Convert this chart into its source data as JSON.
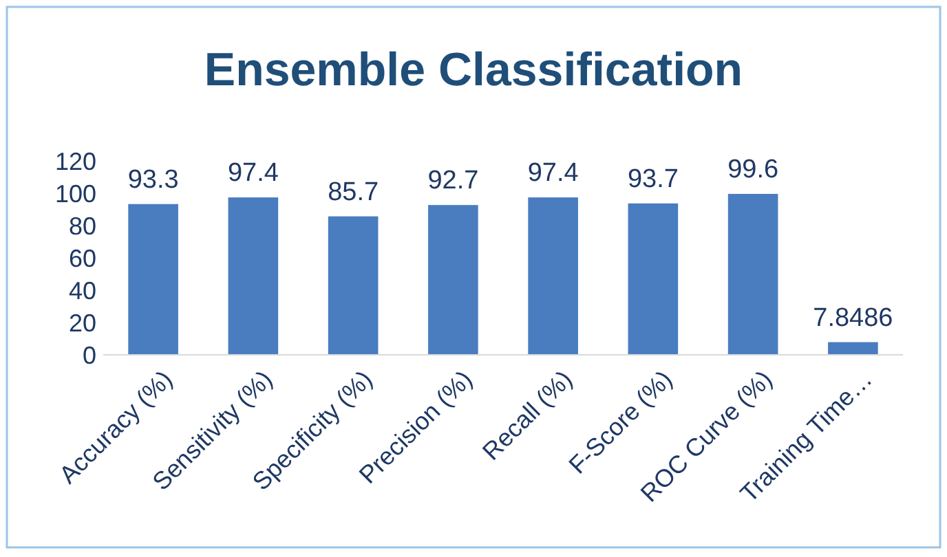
{
  "chart_data": {
    "type": "bar",
    "title": "Ensemble Classification",
    "categories": [
      "Accuracy (%)",
      "Sensitivity (%)",
      "Specificity (%)",
      "Precision (%)",
      "Recall (%)",
      "F-Score (%)",
      "ROC Curve (%)",
      "Training Time…"
    ],
    "values": [
      93.3,
      97.4,
      85.7,
      92.7,
      97.4,
      93.7,
      99.6,
      7.8486
    ],
    "color": "#4a7cc0",
    "ylim": [
      0,
      120
    ],
    "yticks": [
      0,
      20,
      40,
      60,
      80,
      100,
      120
    ],
    "grid": false,
    "data_labels": true
  }
}
